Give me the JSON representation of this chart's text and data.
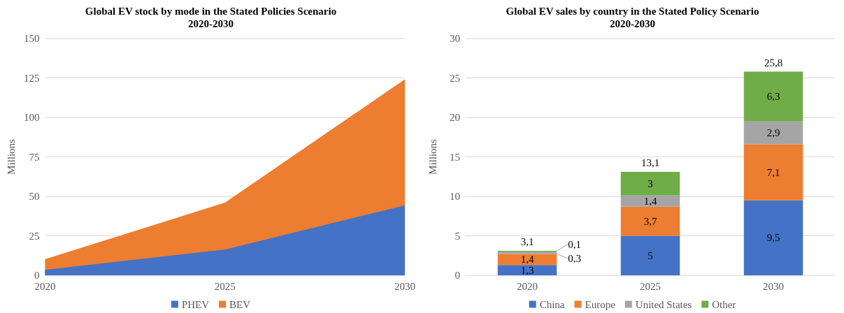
{
  "chart_data": [
    {
      "type": "area",
      "title": "Global EV stock by mode in the Stated Policies Scenario\n2020-2030",
      "ylabel": "Millions",
      "x": [
        2020,
        2025,
        2030
      ],
      "stacked": true,
      "series": [
        {
          "name": "PHEV",
          "color": "#4472c4",
          "values": [
            3.4,
            16.3,
            44.3
          ]
        },
        {
          "name": "BEV",
          "color": "#ed7d31",
          "values": [
            6.8,
            29.7,
            79.8
          ]
        }
      ],
      "xlim": [
        2020,
        2030
      ],
      "xticks": [
        2020,
        2025,
        2030
      ],
      "ylim": [
        0,
        150
      ],
      "yticks": [
        0,
        25,
        50,
        75,
        100,
        125,
        150
      ],
      "grid": "y",
      "legend": "bottom"
    },
    {
      "type": "bar",
      "title": "Global EV sales by country in the Stated Policy Scenario\n2020-2030",
      "ylabel": "Millions",
      "categories": [
        "2020",
        "2025",
        "2030"
      ],
      "stacked": true,
      "series": [
        {
          "name": "China",
          "color": "#4472c4",
          "values": [
            1.3,
            5,
            9.5
          ],
          "value_labels": [
            "1,3",
            "5",
            "9,5"
          ]
        },
        {
          "name": "Europe",
          "color": "#ed7d31",
          "values": [
            1.4,
            3.7,
            7.1
          ],
          "value_labels": [
            "1,4",
            "3,7",
            "7,1"
          ]
        },
        {
          "name": "United States",
          "color": "#a5a5a5",
          "values": [
            0.3,
            1.4,
            2.9
          ],
          "value_labels": [
            "0,3",
            "1,4",
            "2,9"
          ]
        },
        {
          "name": "Other",
          "color": "#70ad47",
          "values": [
            0.1,
            3,
            6.3
          ],
          "value_labels": [
            "0,1",
            "3",
            "6,3"
          ]
        }
      ],
      "totals": [
        "3,1",
        "13,1",
        "25,8"
      ],
      "ylim": [
        0,
        30
      ],
      "yticks": [
        0,
        5,
        10,
        15,
        20,
        25,
        30
      ],
      "grid": "y",
      "legend": "bottom"
    }
  ]
}
